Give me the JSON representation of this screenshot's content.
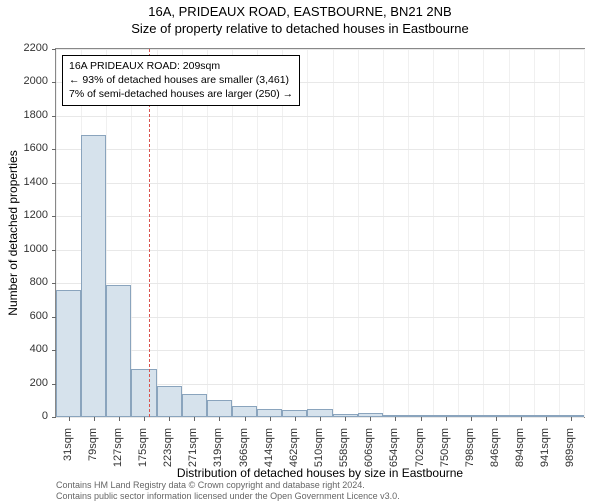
{
  "title_line1": "16A, PRIDEAUX ROAD, EASTBOURNE, BN21 2NB",
  "title_line2": "Size of property relative to detached houses in Eastbourne",
  "chart": {
    "type": "histogram",
    "y_label": "Number of detached properties",
    "x_label": "Distribution of detached houses by size in Eastbourne",
    "ylim": [
      0,
      2200
    ],
    "y_ticks": [
      0,
      200,
      400,
      600,
      800,
      1000,
      1200,
      1400,
      1600,
      1800,
      2000,
      2200
    ],
    "x_tick_labels": [
      "31sqm",
      "79sqm",
      "127sqm",
      "175sqm",
      "223sqm",
      "271sqm",
      "319sqm",
      "366sqm",
      "414sqm",
      "462sqm",
      "510sqm",
      "558sqm",
      "606sqm",
      "654sqm",
      "702sqm",
      "750sqm",
      "798sqm",
      "846sqm",
      "894sqm",
      "941sqm",
      "989sqm"
    ],
    "bars": [
      760,
      1685,
      790,
      290,
      185,
      135,
      100,
      68,
      48,
      40,
      50,
      20,
      22,
      8,
      12,
      6,
      8,
      4,
      4,
      2,
      3
    ],
    "bar_fill": "#d6e2ec",
    "bar_stroke": "#8aa4bd",
    "grid_color": "#e8e8e8",
    "background": "#ffffff",
    "marker_value_sqm": 209,
    "marker_color": "#d9534f",
    "info_box": {
      "line1": "16A PRIDEAUX ROAD: 209sqm",
      "line2": "← 93% of detached houses are smaller (3,461)",
      "line3": "7% of semi-detached houses are larger (250) →"
    }
  },
  "footer_line1": "Contains HM Land Registry data © Crown copyright and database right 2024.",
  "footer_line2": "Contains public sector information licensed under the Open Government Licence v3.0."
}
